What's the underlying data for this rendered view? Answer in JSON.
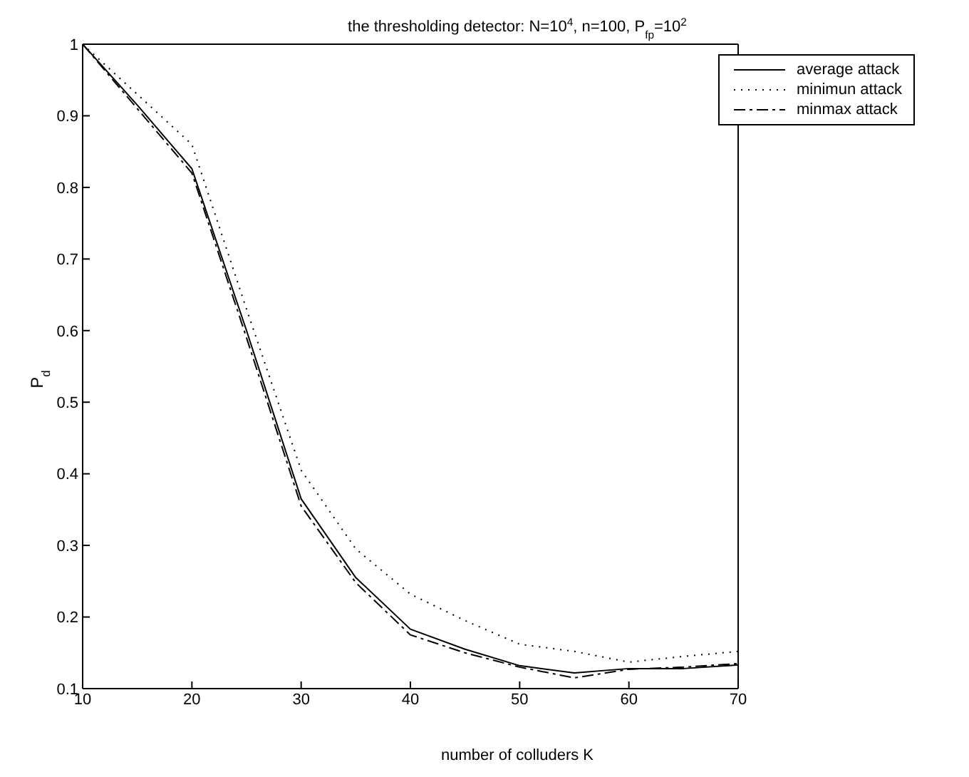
{
  "chart_data": {
    "type": "line",
    "title": "the thresholding detector: N=10$^{4}$, n=100, P$_{fp}$=10$^{2}$",
    "xlabel": "number of colluders K",
    "ylabel": "P$_{d}$",
    "x": [
      10,
      15,
      20,
      25,
      30,
      35,
      40,
      45,
      50,
      55,
      60,
      65,
      70
    ],
    "series": [
      {
        "name": "average attack",
        "color": "#000000",
        "line_style": "solid",
        "values": [
          1.0,
          0.915,
          0.826,
          0.6,
          0.365,
          0.255,
          0.183,
          0.155,
          0.132,
          0.122,
          0.128,
          0.128,
          0.133
        ]
      },
      {
        "name": "minimun attack",
        "color": "#000000",
        "line_style": "dotted",
        "values": [
          1.0,
          0.93,
          0.86,
          0.63,
          0.405,
          0.295,
          0.232,
          0.195,
          0.162,
          0.152,
          0.137,
          0.145,
          0.152
        ]
      },
      {
        "name": "minmax attack",
        "color": "#000000",
        "line_style": "dashdot",
        "values": [
          1.0,
          0.91,
          0.82,
          0.59,
          0.355,
          0.248,
          0.175,
          0.15,
          0.13,
          0.115,
          0.127,
          0.13,
          0.135
        ]
      }
    ],
    "xlim": [
      10,
      70
    ],
    "xticks": [
      10,
      20,
      30,
      40,
      50,
      60,
      70
    ],
    "ylim": [
      0.1,
      1
    ],
    "yticks": [
      0.1,
      0.2,
      0.3,
      0.4,
      0.5,
      0.6,
      0.7,
      0.8,
      0.9,
      1
    ],
    "grid": false,
    "legend": "top right",
    "marker": "none"
  }
}
